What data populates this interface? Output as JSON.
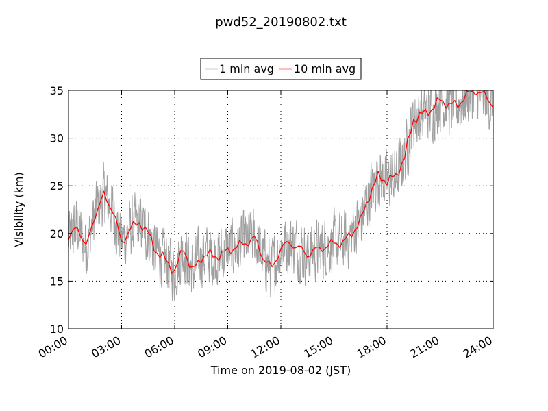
{
  "chart_data": {
    "type": "line",
    "title": "pwd52_20190802.txt",
    "xlabel": "Time on 2019-08-02 (JST)",
    "ylabel": "Visibility (km)",
    "xlim": [
      "00:00",
      "24:00"
    ],
    "ylim": [
      10,
      35
    ],
    "x_tick_labels": [
      "00:00",
      "03:00",
      "06:00",
      "09:00",
      "12:00",
      "15:00",
      "18:00",
      "21:00",
      "24:00"
    ],
    "y_tick_labels": [
      "10",
      "15",
      "20",
      "25",
      "30",
      "35"
    ],
    "grid": true,
    "legend_position": "top-center, above plot",
    "series": [
      {
        "name": "1 min avg",
        "color": "#a0a0a0",
        "noise": true,
        "x": [
          "00:00",
          "00:30",
          "01:00",
          "01:30",
          "02:00",
          "02:30",
          "03:00",
          "03:30",
          "04:00",
          "04:30",
          "05:00",
          "05:30",
          "06:00",
          "06:30",
          "07:00",
          "07:30",
          "08:00",
          "08:30",
          "09:00",
          "09:30",
          "10:00",
          "10:30",
          "11:00",
          "11:30",
          "12:00",
          "12:30",
          "13:00",
          "13:30",
          "14:00",
          "14:30",
          "15:00",
          "15:30",
          "16:00",
          "16:30",
          "17:00",
          "17:30",
          "18:00",
          "18:30",
          "19:00",
          "19:30",
          "20:00",
          "20:30",
          "21:00",
          "21:30",
          "22:00",
          "22:30",
          "23:00",
          "23:30",
          "24:00"
        ],
        "y": [
          19.3,
          20.8,
          18.5,
          22.0,
          24.0,
          22.5,
          19.0,
          20.5,
          21.2,
          20.0,
          18.0,
          17.2,
          16.0,
          18.5,
          16.0,
          17.5,
          17.8,
          17.6,
          18.2,
          18.6,
          19.0,
          19.5,
          17.5,
          16.3,
          18.5,
          19.0,
          18.5,
          17.8,
          18.3,
          18.6,
          19.0,
          19.0,
          20.0,
          21.3,
          24.0,
          26.0,
          25.5,
          26.0,
          28.0,
          32.0,
          32.5,
          33.0,
          34.0,
          33.5,
          33.5,
          34.5,
          35.0,
          34.5,
          33.5
        ]
      },
      {
        "name": "10 min avg",
        "color": "#ff0000",
        "noise": false,
        "x": [
          "00:00",
          "00:30",
          "01:00",
          "01:30",
          "02:00",
          "02:30",
          "03:00",
          "03:30",
          "04:00",
          "04:30",
          "05:00",
          "05:30",
          "06:00",
          "06:30",
          "07:00",
          "07:30",
          "08:00",
          "08:30",
          "09:00",
          "09:30",
          "10:00",
          "10:30",
          "11:00",
          "11:30",
          "12:00",
          "12:30",
          "13:00",
          "13:30",
          "14:00",
          "14:30",
          "15:00",
          "15:30",
          "16:00",
          "16:30",
          "17:00",
          "17:30",
          "18:00",
          "18:30",
          "19:00",
          "19:30",
          "20:00",
          "20:30",
          "21:00",
          "21:30",
          "22:00",
          "22:30",
          "23:00",
          "23:30",
          "24:00"
        ],
        "y": [
          19.3,
          20.8,
          18.5,
          22.0,
          24.0,
          22.5,
          19.0,
          20.5,
          21.2,
          20.0,
          18.0,
          17.2,
          16.0,
          18.5,
          16.0,
          17.5,
          17.8,
          17.6,
          18.2,
          18.6,
          19.0,
          19.5,
          17.5,
          16.3,
          18.5,
          19.0,
          18.5,
          17.8,
          18.3,
          18.6,
          19.0,
          19.0,
          20.0,
          21.3,
          24.0,
          26.0,
          25.5,
          26.0,
          28.0,
          32.0,
          32.5,
          33.0,
          34.0,
          33.5,
          33.5,
          34.5,
          35.0,
          34.5,
          33.5
        ]
      }
    ]
  }
}
